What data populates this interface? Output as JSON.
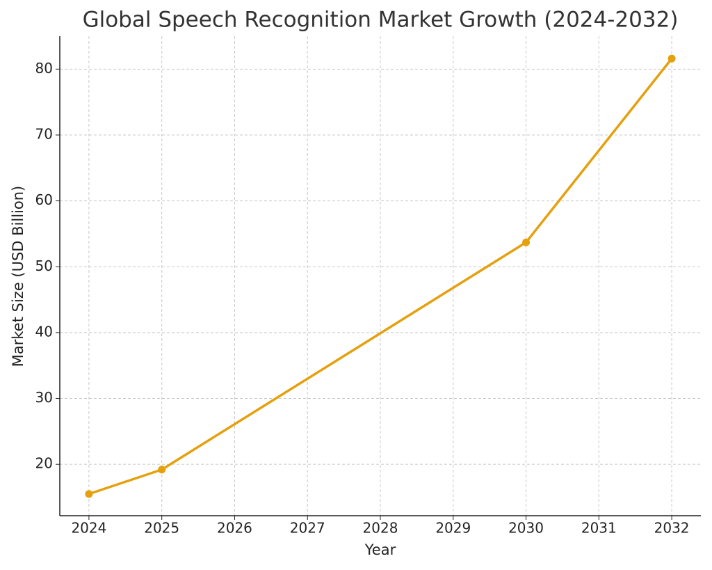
{
  "chart_data": {
    "type": "line",
    "title": "Global Speech Recognition Market Growth (2024-2032)",
    "x_label": "Year",
    "y_label": "Market Size (USD Billion)",
    "x": [
      2024,
      2025,
      2030,
      2032
    ],
    "series": [
      {
        "color": "#e5a00d",
        "values": [
          15.5,
          19.2,
          53.7,
          81.6
        ]
      }
    ],
    "xlim": [
      2023.6,
      2032.4
    ],
    "xticks": [
      2024,
      2025,
      2026,
      2027,
      2028,
      2029,
      2030,
      2031,
      2032
    ],
    "ylim": [
      12.2,
      85
    ],
    "yticks": [
      20,
      30,
      40,
      50,
      60,
      70,
      80
    ],
    "grid": true,
    "markers": true
  }
}
